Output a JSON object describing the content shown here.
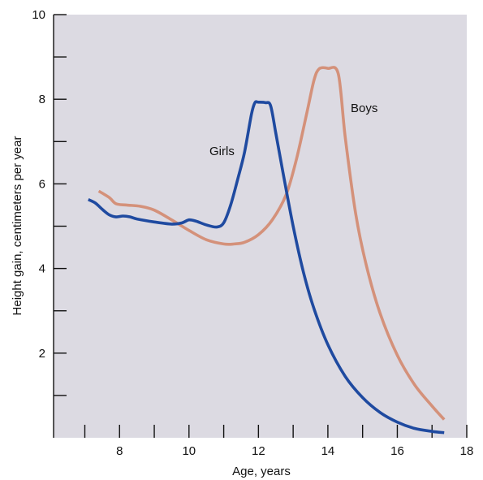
{
  "chart_data": {
    "type": "line",
    "xlabel": "Age, years",
    "ylabel": "Height gain, centimeters per year",
    "xlim": [
      6.1,
      18
    ],
    "ylim": [
      0,
      10
    ],
    "x_ticks": [
      8,
      10,
      12,
      14,
      16,
      18
    ],
    "y_ticks": [
      2,
      4,
      6,
      8,
      10
    ],
    "x_minor_ticks": [
      7,
      9,
      11,
      13,
      15,
      17
    ],
    "y_minor_ticks": [
      1,
      3,
      5,
      7,
      9
    ],
    "background_color": "#dcdae2",
    "grid": false,
    "series": [
      {
        "name": "Girls",
        "color": "#1f4aa0",
        "x": [
          7.1,
          7.3,
          7.5,
          7.7,
          7.9,
          8.1,
          8.3,
          8.5,
          9.0,
          9.5,
          9.8,
          10.0,
          10.2,
          10.5,
          10.8,
          11.0,
          11.2,
          11.4,
          11.6,
          11.8,
          11.9,
          12.0,
          12.2,
          12.35,
          12.5,
          12.7,
          13.0,
          13.3,
          13.6,
          14.0,
          14.5,
          15.0,
          15.5,
          16.0,
          16.5,
          17.0,
          17.35
        ],
        "values": [
          5.63,
          5.55,
          5.4,
          5.27,
          5.22,
          5.24,
          5.22,
          5.17,
          5.1,
          5.05,
          5.08,
          5.15,
          5.12,
          5.03,
          4.98,
          5.08,
          5.5,
          6.1,
          6.75,
          7.65,
          7.92,
          7.93,
          7.92,
          7.85,
          7.2,
          6.3,
          5.0,
          3.9,
          3.05,
          2.2,
          1.45,
          0.95,
          0.6,
          0.37,
          0.22,
          0.15,
          0.12
        ]
      },
      {
        "name": "Boys",
        "color": "#d4917a",
        "x": [
          7.4,
          7.7,
          7.9,
          8.2,
          8.6,
          9.0,
          9.5,
          10.0,
          10.5,
          11.0,
          11.3,
          11.6,
          12.0,
          12.4,
          12.8,
          13.1,
          13.4,
          13.6,
          13.75,
          14.0,
          14.3,
          14.5,
          14.8,
          15.1,
          15.5,
          16.0,
          16.5,
          17.0,
          17.35
        ],
        "values": [
          5.83,
          5.68,
          5.53,
          5.5,
          5.47,
          5.38,
          5.15,
          4.9,
          4.68,
          4.58,
          4.58,
          4.62,
          4.8,
          5.15,
          5.75,
          6.6,
          7.7,
          8.45,
          8.72,
          8.73,
          8.6,
          7.1,
          5.3,
          4.1,
          2.95,
          1.95,
          1.25,
          0.75,
          0.43
        ]
      }
    ],
    "annotations": [
      {
        "text": "Girls",
        "series": "Girls"
      },
      {
        "text": "Boys",
        "series": "Boys"
      }
    ]
  }
}
